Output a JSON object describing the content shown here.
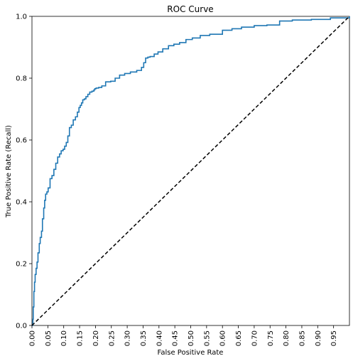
{
  "chart_data": {
    "type": "line",
    "title": "ROC Curve",
    "xlabel": "False Positive Rate",
    "ylabel": "True Positive Rate (Recall)",
    "xlim": [
      0,
      1
    ],
    "ylim": [
      0,
      1
    ],
    "grid": false,
    "x_ticks": [
      "0.00",
      "0.05",
      "0.10",
      "0.15",
      "0.20",
      "0.25",
      "0.30",
      "0.35",
      "0.40",
      "0.45",
      "0.50",
      "0.55",
      "0.60",
      "0.65",
      "0.70",
      "0.75",
      "0.80",
      "0.85",
      "0.90",
      "0.95"
    ],
    "y_ticks": [
      "0.0",
      "0.2",
      "0.4",
      "0.6",
      "0.8",
      "1.0"
    ],
    "series": [
      {
        "color": "#1f77b4",
        "style": "step",
        "x": [
          0.0,
          0.003,
          0.004,
          0.006,
          0.008,
          0.01,
          0.013,
          0.016,
          0.019,
          0.023,
          0.026,
          0.03,
          0.033,
          0.037,
          0.04,
          0.043,
          0.047,
          0.051,
          0.057,
          0.063,
          0.069,
          0.075,
          0.081,
          0.087,
          0.092,
          0.098,
          0.103,
          0.108,
          0.113,
          0.118,
          0.124,
          0.13,
          0.137,
          0.143,
          0.148,
          0.152,
          0.156,
          0.16,
          0.165,
          0.17,
          0.176,
          0.182,
          0.189,
          0.195,
          0.198,
          0.202,
          0.21,
          0.22,
          0.232,
          0.248,
          0.262,
          0.276,
          0.292,
          0.31,
          0.33,
          0.345,
          0.352,
          0.358,
          0.365,
          0.372,
          0.385,
          0.397,
          0.412,
          0.43,
          0.447,
          0.465,
          0.485,
          0.505,
          0.53,
          0.56,
          0.6,
          0.63,
          0.66,
          0.7,
          0.74,
          0.78,
          0.82,
          0.88,
          0.94,
          1.0
        ],
        "y": [
          0.0,
          0.02,
          0.06,
          0.11,
          0.14,
          0.165,
          0.185,
          0.205,
          0.235,
          0.265,
          0.285,
          0.305,
          0.345,
          0.38,
          0.405,
          0.425,
          0.432,
          0.445,
          0.475,
          0.485,
          0.505,
          0.525,
          0.545,
          0.555,
          0.565,
          0.57,
          0.58,
          0.592,
          0.613,
          0.64,
          0.648,
          0.665,
          0.675,
          0.69,
          0.705,
          0.712,
          0.72,
          0.73,
          0.733,
          0.74,
          0.748,
          0.755,
          0.758,
          0.762,
          0.766,
          0.768,
          0.77,
          0.775,
          0.788,
          0.79,
          0.8,
          0.81,
          0.815,
          0.82,
          0.825,
          0.835,
          0.85,
          0.865,
          0.868,
          0.87,
          0.878,
          0.885,
          0.895,
          0.905,
          0.91,
          0.915,
          0.925,
          0.93,
          0.938,
          0.942,
          0.955,
          0.96,
          0.965,
          0.97,
          0.972,
          0.985,
          0.988,
          0.99,
          0.995,
          1.0
        ]
      },
      {
        "color": "#000000",
        "style": "dashed",
        "x": [
          0,
          1
        ],
        "y": [
          0,
          1
        ]
      }
    ]
  }
}
